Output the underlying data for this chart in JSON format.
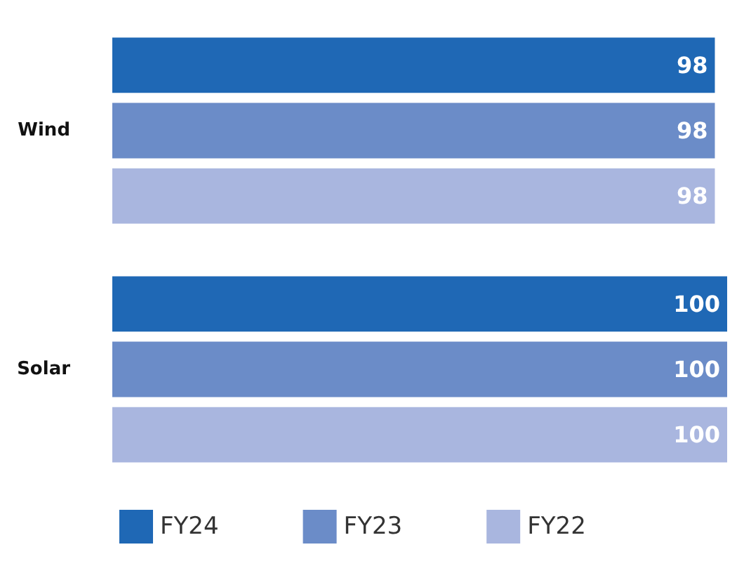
{
  "chart_data": {
    "type": "bar",
    "orientation": "horizontal",
    "categories": [
      "Wind",
      "Solar"
    ],
    "series": [
      {
        "name": "FY24",
        "color": "#1f68b5",
        "values": [
          98,
          100
        ]
      },
      {
        "name": "FY23",
        "color": "#6b8cc8",
        "values": [
          98,
          100
        ]
      },
      {
        "name": "FY22",
        "color": "#a9b6df",
        "values": [
          98,
          100
        ]
      }
    ],
    "data_labels": true,
    "legend": "bottom"
  }
}
